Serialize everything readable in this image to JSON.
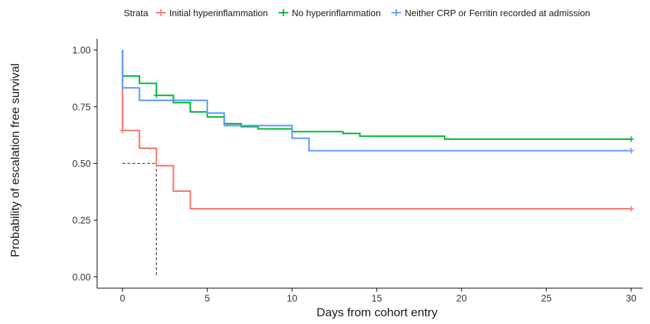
{
  "chart_data": {
    "type": "line",
    "step": true,
    "xlabel": "Days from cohort entry",
    "ylabel": "Probability of escalation free survival",
    "xlim": [
      -1.5,
      30.7
    ],
    "ylim": [
      -0.05,
      1.05
    ],
    "x_ticks": [
      0,
      5,
      10,
      15,
      20,
      25,
      30
    ],
    "x_tick_labels": [
      "0",
      "5",
      "10",
      "15",
      "20",
      "25",
      "30"
    ],
    "y_ticks": [
      0,
      0.25,
      0.5,
      0.75,
      1.0
    ],
    "y_tick_labels": [
      "0.00",
      "0.25",
      "0.50",
      "0.75",
      "1.00"
    ],
    "grid": false,
    "legend": {
      "title": "Strata",
      "placement": "top"
    },
    "median_line": {
      "x": 2,
      "y": 0.5,
      "style": "dashed",
      "color": "#404040"
    },
    "series": [
      {
        "name": "Initial hyperinflammation",
        "color": "#F8766D",
        "x": [
          0,
          0,
          1,
          2,
          3,
          4,
          30
        ],
        "y": [
          1.0,
          0.645,
          0.567,
          0.49,
          0.378,
          0.3,
          0.3
        ],
        "censor": [
          {
            "x": 0,
            "y": 0.645
          },
          {
            "x": 30,
            "y": 0.3
          }
        ]
      },
      {
        "name": "No hyperinflammation",
        "color": "#00BA38",
        "x": [
          0,
          0,
          1,
          2,
          3,
          4,
          5,
          6,
          7,
          8,
          10,
          13,
          14,
          19,
          30
        ],
        "y": [
          1.0,
          0.885,
          0.853,
          0.8,
          0.768,
          0.727,
          0.705,
          0.675,
          0.662,
          0.652,
          0.64,
          0.632,
          0.62,
          0.607,
          0.607
        ],
        "censor": [
          {
            "x": 2,
            "y": 0.8
          },
          {
            "x": 30,
            "y": 0.607
          }
        ]
      },
      {
        "name": "Neither CRP or Ferritin recorded at admission",
        "color": "#619CFF",
        "x": [
          0,
          0,
          1,
          5,
          6,
          10,
          11,
          30
        ],
        "y": [
          1.0,
          0.833,
          0.778,
          0.722,
          0.667,
          0.611,
          0.556,
          0.556
        ],
        "censor": [
          {
            "x": 30,
            "y": 0.556
          }
        ]
      }
    ]
  }
}
